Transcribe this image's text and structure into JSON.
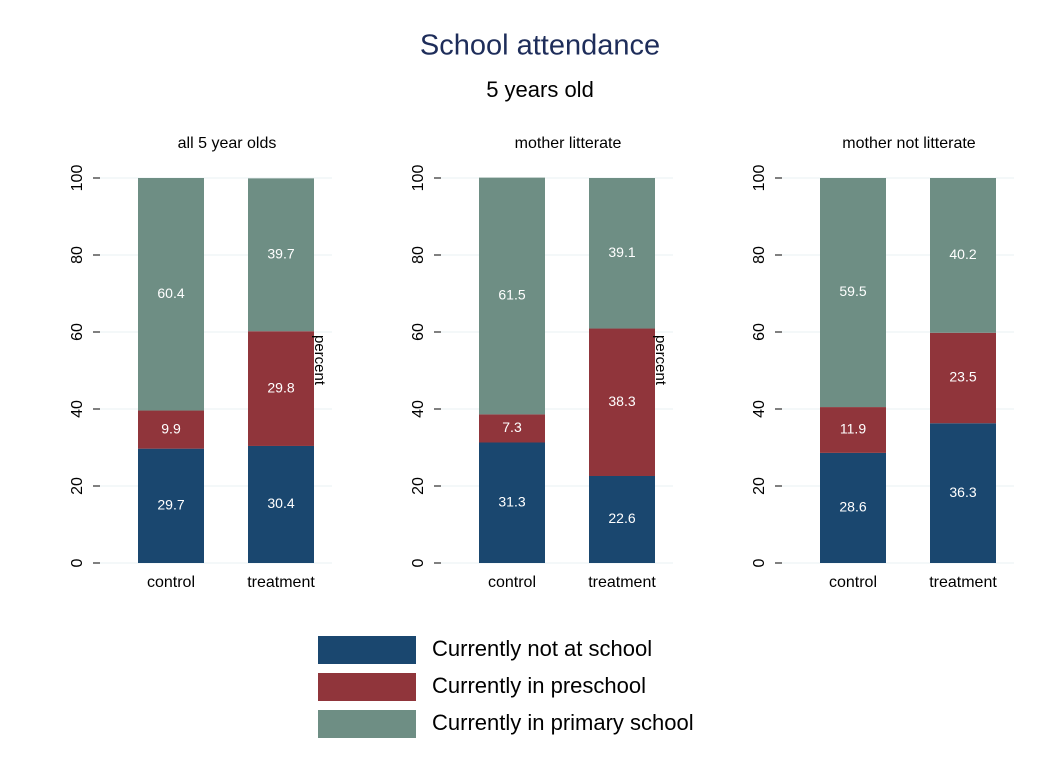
{
  "title": "School attendance",
  "subtitle": "5 years old",
  "chart_data": [
    {
      "type": "bar",
      "stacked": true,
      "title": "all 5 year olds",
      "categories": [
        "control",
        "treatment"
      ],
      "series": [
        {
          "name": "Currently not at school",
          "color": "#1a476f",
          "values": [
            29.7,
            30.4
          ]
        },
        {
          "name": "Currently in preschool",
          "color": "#90353b",
          "values": [
            9.9,
            29.8
          ]
        },
        {
          "name": "Currently in primary school",
          "color": "#6e8e84",
          "values": [
            60.4,
            39.7
          ]
        }
      ],
      "ylim": [
        0,
        100
      ],
      "yticks": [
        0,
        20,
        40,
        60,
        80,
        100
      ],
      "grid": true
    },
    {
      "type": "bar",
      "stacked": true,
      "title": "mother litterate",
      "ylabel": "percent",
      "categories": [
        "control",
        "treatment"
      ],
      "series": [
        {
          "name": "Currently not at school",
          "color": "#1a476f",
          "values": [
            31.3,
            22.6
          ]
        },
        {
          "name": "Currently in preschool",
          "color": "#90353b",
          "values": [
            7.3,
            38.3
          ]
        },
        {
          "name": "Currently in primary school",
          "color": "#6e8e84",
          "values": [
            61.5,
            39.1
          ]
        }
      ],
      "ylim": [
        0,
        100
      ],
      "yticks": [
        0,
        20,
        40,
        60,
        80,
        100
      ],
      "grid": true
    },
    {
      "type": "bar",
      "stacked": true,
      "title": "mother not litterate",
      "ylabel": "percent",
      "categories": [
        "control",
        "treatment"
      ],
      "series": [
        {
          "name": "Currently not at school",
          "color": "#1a476f",
          "values": [
            28.6,
            36.3
          ]
        },
        {
          "name": "Currently in preschool",
          "color": "#90353b",
          "values": [
            11.9,
            23.5
          ]
        },
        {
          "name": "Currently in primary school",
          "color": "#6e8e84",
          "values": [
            59.5,
            40.2
          ]
        }
      ],
      "ylim": [
        0,
        100
      ],
      "yticks": [
        0,
        20,
        40,
        60,
        80,
        100
      ],
      "grid": true
    }
  ]
}
